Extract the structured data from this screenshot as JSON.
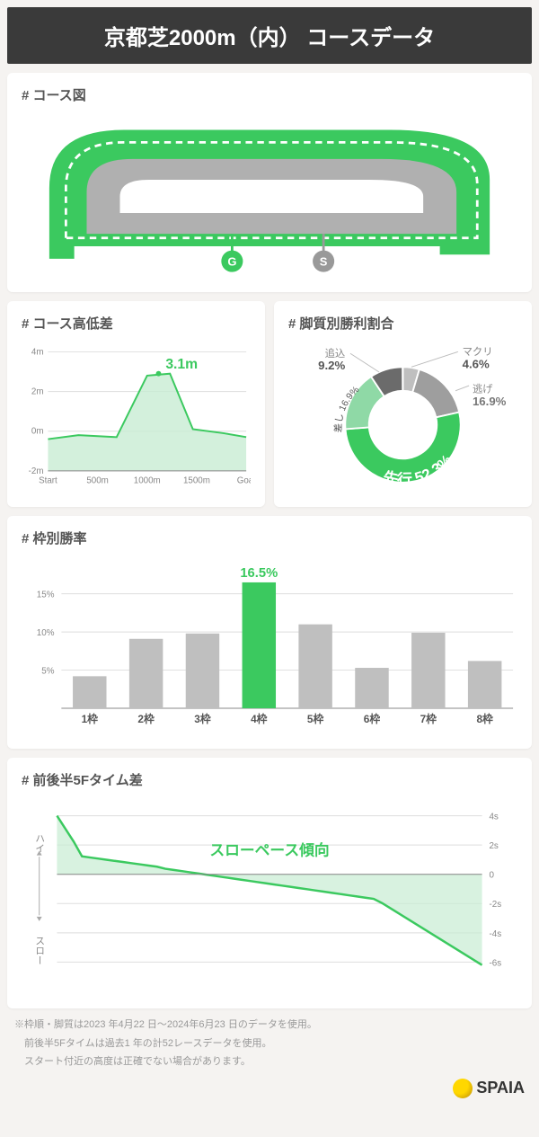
{
  "header": {
    "title": "京都芝2000m（内） コースデータ"
  },
  "course_map": {
    "title": "# コース図",
    "goal_label": "G",
    "start_label": "S",
    "track_bg": "#b0b0b0",
    "turf_color": "#3bc95f",
    "dash_color": "#ffffff"
  },
  "elevation": {
    "title": "# コース高低差",
    "peak_label": "3.1m",
    "x_labels": [
      "Start",
      "500m",
      "1000m",
      "1500m",
      "Goal"
    ],
    "y_ticks": [
      "-2m",
      "0m",
      "2m",
      "4m"
    ],
    "y_values": [
      -2,
      0,
      2,
      4
    ],
    "points": [
      {
        "x": 0,
        "y": -0.4
      },
      {
        "x": 40,
        "y": -0.2
      },
      {
        "x": 90,
        "y": -0.3
      },
      {
        "x": 130,
        "y": 2.8
      },
      {
        "x": 160,
        "y": 2.9
      },
      {
        "x": 190,
        "y": 0.1
      },
      {
        "x": 230,
        "y": -0.1
      },
      {
        "x": 260,
        "y": -0.3
      }
    ],
    "line_color": "#3bc95f",
    "fill_color": "#c8ecd3",
    "bg": "#ffffff"
  },
  "donut": {
    "title": "# 脚質別勝利割合",
    "slices": [
      {
        "label": "マクリ",
        "value": 4.6,
        "color": "#bfbfbf"
      },
      {
        "label": "逃げ",
        "value": 16.9,
        "color": "#9e9e9e"
      },
      {
        "label": "先行",
        "value": 52.3,
        "color": "#3bc95f"
      },
      {
        "label": "差し",
        "value": 16.9,
        "color": "#8fd9a6"
      },
      {
        "label": "追込",
        "value": 9.2,
        "color": "#6b6b6b"
      }
    ],
    "label_makuri": "マクリ",
    "val_makuri": "4.6%",
    "label_nige": "逃げ",
    "val_nige": "16.9%",
    "label_senko": "先行",
    "val_senko": "52.3%",
    "label_sashi": "差し",
    "val_sashi": "16.9%",
    "label_oikomi": "追込",
    "val_oikomi": "9.2%"
  },
  "bars": {
    "title": "# 枠別勝率",
    "categories": [
      "1枠",
      "2枠",
      "3枠",
      "4枠",
      "5枠",
      "6枠",
      "7枠",
      "8枠"
    ],
    "values": [
      4.2,
      9.1,
      9.8,
      16.5,
      11.0,
      5.3,
      9.9,
      6.2
    ],
    "highlight_index": 3,
    "highlight_label": "16.5%",
    "bar_color": "#bfbfbf",
    "highlight_color": "#3bc95f",
    "y_ticks": [
      "5%",
      "10%",
      "15%"
    ],
    "y_values": [
      5,
      10,
      15
    ]
  },
  "pace": {
    "title": "# 前後半5Fタイム差",
    "caption": "スローペース傾向",
    "high_label": "ハイ",
    "slow_label": "スロー",
    "y_ticks": [
      "-6s",
      "-4s",
      "-2s",
      "0",
      "2s",
      "4s"
    ],
    "y_values": [
      -6,
      -4,
      -2,
      0,
      2,
      4
    ],
    "line_color": "#3bc95f",
    "fill_color": "#c8ecd3",
    "caption_color": "#3bc95f"
  },
  "footnote": {
    "l1": "※枠順・脚質は2023 年4月22 日〜2024年6月23 日のデータを使用。",
    "l2": "　前後半5Fタイムは過去1 年の計52レースデータを使用。",
    "l3": "　スタート付近の高度は正確でない場合があります。"
  },
  "logo": {
    "text": "SPAIA"
  }
}
